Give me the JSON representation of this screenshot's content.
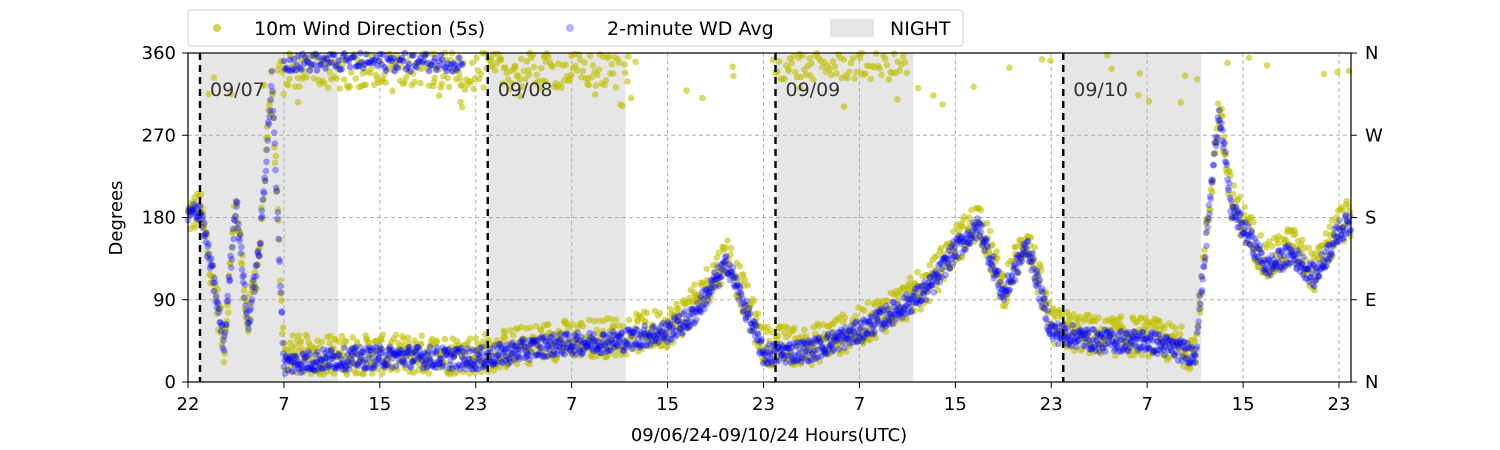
{
  "chart_data": {
    "type": "scatter",
    "xlabel": "09/06/24-09/10/24  Hours(UTC)",
    "ylabel": "Degrees",
    "x_range_hours": [
      0,
      97
    ],
    "x_ticks": [
      {
        "hour": 0,
        "label": "22"
      },
      {
        "hour": 8,
        "label": "7"
      },
      {
        "hour": 16,
        "label": "15"
      },
      {
        "hour": 24,
        "label": "23"
      },
      {
        "hour": 32,
        "label": "7"
      },
      {
        "hour": 40,
        "label": "15"
      },
      {
        "hour": 48,
        "label": "23"
      },
      {
        "hour": 56,
        "label": "7"
      },
      {
        "hour": 64,
        "label": "15"
      },
      {
        "hour": 72,
        "label": "23"
      },
      {
        "hour": 80,
        "label": "7"
      },
      {
        "hour": 88,
        "label": "15"
      },
      {
        "hour": 96,
        "label": "23"
      }
    ],
    "ylim": [
      0,
      360
    ],
    "y_ticks": [
      0,
      90,
      180,
      270,
      360
    ],
    "y_ticks_right": [
      {
        "value": 0,
        "label": "N"
      },
      {
        "value": 90,
        "label": "E"
      },
      {
        "value": 180,
        "label": "S"
      },
      {
        "value": 270,
        "label": "W"
      },
      {
        "value": 360,
        "label": "N"
      }
    ],
    "grid": true,
    "legend_position": "top-center, above plot",
    "day_boundaries": [
      {
        "hour": 1,
        "label": "09/07"
      },
      {
        "hour": 25,
        "label": "09/08"
      },
      {
        "hour": 49,
        "label": "09/09"
      },
      {
        "hour": 73,
        "label": "09/10"
      }
    ],
    "night_bands": [
      [
        1,
        12.5
      ],
      [
        25,
        36.5
      ],
      [
        49,
        60.5
      ],
      [
        73,
        84.5
      ]
    ],
    "night_color": "#e6e6e6",
    "series": [
      {
        "name": "10m Wind Direction (5s)",
        "color": "#bfbf00",
        "trend": [
          [
            0,
            180
          ],
          [
            1,
            190
          ],
          [
            2,
            120
          ],
          [
            3,
            40
          ],
          [
            4,
            200
          ],
          [
            5,
            60
          ],
          [
            6,
            150
          ],
          [
            7,
            330
          ],
          [
            8,
            30
          ],
          [
            12,
            30
          ],
          [
            18,
            30
          ],
          [
            24,
            30
          ],
          [
            30,
            45
          ],
          [
            36,
            50
          ],
          [
            40,
            60
          ],
          [
            42,
            80
          ],
          [
            45,
            140
          ],
          [
            48,
            40
          ],
          [
            52,
            40
          ],
          [
            56,
            60
          ],
          [
            60,
            90
          ],
          [
            62,
            110
          ],
          [
            64,
            150
          ],
          [
            66,
            180
          ],
          [
            68,
            100
          ],
          [
            70,
            160
          ],
          [
            72,
            60
          ],
          [
            76,
            50
          ],
          [
            80,
            50
          ],
          [
            84,
            35
          ],
          [
            86,
            300
          ],
          [
            87,
            200
          ],
          [
            90,
            130
          ],
          [
            92,
            150
          ],
          [
            94,
            120
          ],
          [
            96,
            170
          ],
          [
            97,
            180
          ]
        ]
      },
      {
        "name": "2-minute WD Avg",
        "color": "#0000ff",
        "trend": [
          [
            0,
            180
          ],
          [
            1,
            190
          ],
          [
            2,
            120
          ],
          [
            3,
            40
          ],
          [
            4,
            200
          ],
          [
            5,
            60
          ],
          [
            6,
            150
          ],
          [
            7,
            330
          ],
          [
            8,
            20
          ],
          [
            12,
            25
          ],
          [
            18,
            28
          ],
          [
            24,
            25
          ],
          [
            30,
            40
          ],
          [
            36,
            45
          ],
          [
            40,
            55
          ],
          [
            42,
            70
          ],
          [
            45,
            130
          ],
          [
            48,
            30
          ],
          [
            52,
            35
          ],
          [
            56,
            55
          ],
          [
            60,
            85
          ],
          [
            62,
            105
          ],
          [
            64,
            145
          ],
          [
            66,
            170
          ],
          [
            68,
            95
          ],
          [
            70,
            150
          ],
          [
            72,
            55
          ],
          [
            76,
            45
          ],
          [
            80,
            45
          ],
          [
            84,
            30
          ],
          [
            86,
            300
          ],
          [
            87,
            190
          ],
          [
            90,
            125
          ],
          [
            92,
            140
          ],
          [
            94,
            115
          ],
          [
            96,
            165
          ],
          [
            97,
            175
          ]
        ]
      }
    ]
  },
  "legend": {
    "wind_label": "10m Wind Direction (5s)",
    "avg_label": "2-minute WD Avg",
    "night_label": "NIGHT"
  }
}
